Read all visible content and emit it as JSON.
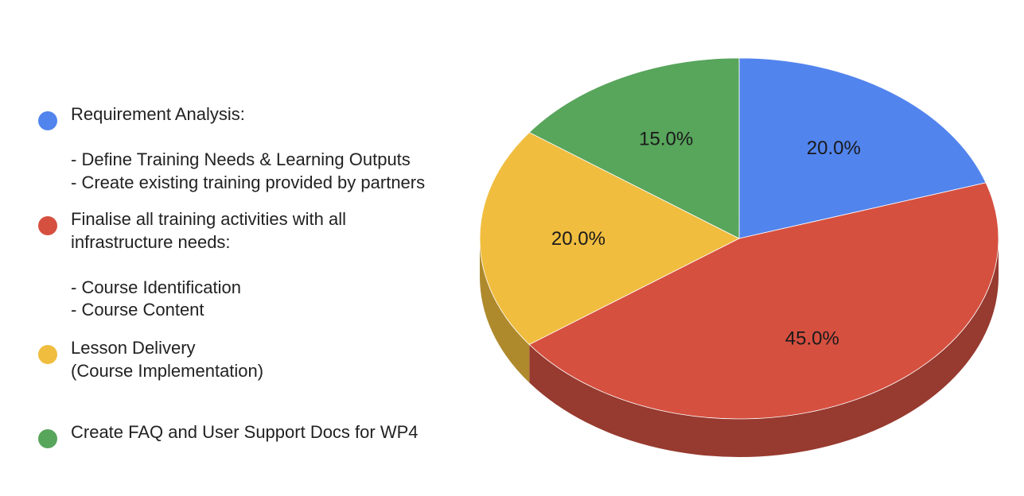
{
  "chart_data": {
    "type": "pie",
    "title": "",
    "legend_position": "left",
    "three_d": true,
    "slices": [
      {
        "name": "Requirement Analysis:\n\n- Define Training Needs & Learning Outputs\n- Create existing training provided by partners",
        "value": 20.0,
        "label": "20.0%",
        "color": "#5284ED",
        "side_color": "#3E63B2"
      },
      {
        "name": "Finalise all training activities with all\ninfrastructure needs:\n\n- Course Identification\n- Course Content",
        "value": 45.0,
        "label": "45.0%",
        "color": "#D65040",
        "side_color": "#973A2F"
      },
      {
        "name": "Lesson Delivery\n(Course Implementation)",
        "value": 20.0,
        "label": "20.0%",
        "color": "#F0BD3F",
        "side_color": "#AF8A2D"
      },
      {
        "name": "Create FAQ and User Support Docs for WP4",
        "value": 15.0,
        "label": "15.0%",
        "color": "#58A55C",
        "side_color": "#3F7A43"
      }
    ]
  }
}
